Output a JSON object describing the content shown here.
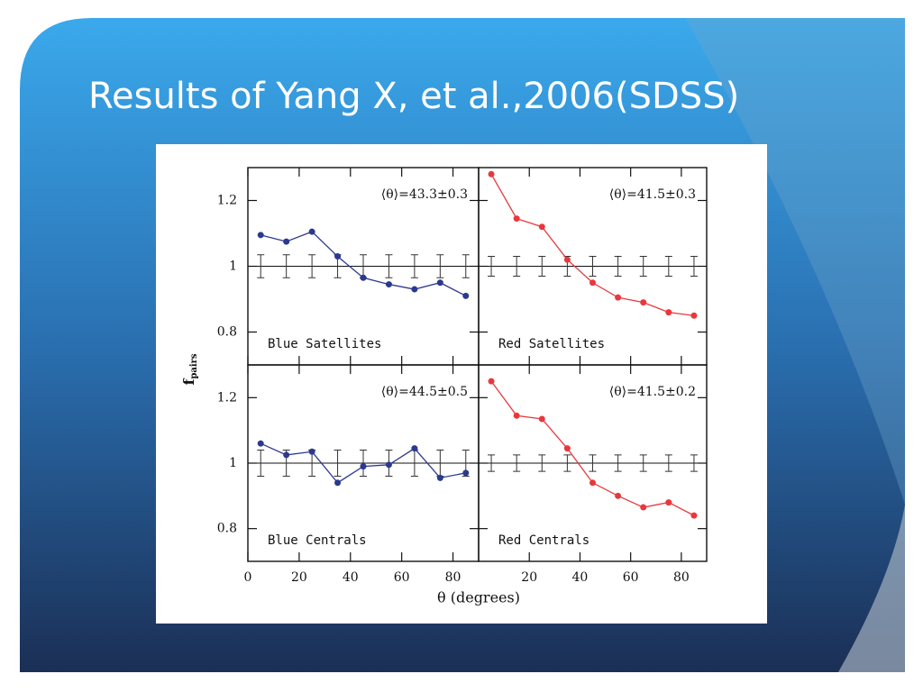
{
  "slide": {
    "title": "Results of Yang X, et al.,2006(SDSS)"
  },
  "figure": {
    "ylabel": "f",
    "ylabel_sub": "pairs",
    "xlabel": "θ (degrees)"
  },
  "chart_data": [
    {
      "type": "line",
      "label": "Blue Satellites",
      "annotation": "⟨θ⟩=43.3±0.3",
      "color": "#2b3990",
      "x": [
        5,
        15,
        25,
        35,
        45,
        55,
        65,
        75,
        85
      ],
      "values": [
        1.095,
        1.075,
        1.105,
        1.03,
        0.965,
        0.945,
        0.93,
        0.95,
        0.91
      ],
      "reference": 1,
      "errors": [
        0.035,
        0.035,
        0.035,
        0.035,
        0.035,
        0.035,
        0.035,
        0.035,
        0.035
      ],
      "xlim": [
        0,
        90
      ],
      "ylim": [
        0.7,
        1.3
      ],
      "xticks": [
        0,
        20,
        40,
        60,
        80
      ],
      "yticks": [
        0.8,
        1,
        1.2
      ],
      "xtick_labels": false,
      "ytick_labels": true
    },
    {
      "type": "line",
      "label": "Red Satellites",
      "annotation": "⟨θ⟩=41.5±0.3",
      "color": "#e8383d",
      "x": [
        5,
        15,
        25,
        35,
        45,
        55,
        65,
        75,
        85
      ],
      "values": [
        1.28,
        1.145,
        1.12,
        1.02,
        0.95,
        0.905,
        0.89,
        0.86,
        0.85
      ],
      "reference": 1,
      "errors": [
        0.03,
        0.03,
        0.03,
        0.03,
        0.03,
        0.03,
        0.03,
        0.03,
        0.03
      ],
      "xlim": [
        0,
        90
      ],
      "ylim": [
        0.7,
        1.3
      ],
      "xticks": [
        20,
        40,
        60,
        80
      ],
      "yticks": [
        0.8,
        1,
        1.2
      ],
      "xtick_labels": false,
      "ytick_labels": false
    },
    {
      "type": "line",
      "label": "Blue Centrals",
      "annotation": "⟨θ⟩=44.5±0.5",
      "color": "#2b3990",
      "x": [
        5,
        15,
        25,
        35,
        45,
        55,
        65,
        75,
        85
      ],
      "values": [
        1.06,
        1.025,
        1.035,
        0.94,
        0.99,
        0.995,
        1.045,
        0.955,
        0.97
      ],
      "reference": 1,
      "errors": [
        0.04,
        0.04,
        0.04,
        0.04,
        0.04,
        0.04,
        0.04,
        0.04,
        0.04
      ],
      "xlim": [
        0,
        90
      ],
      "ylim": [
        0.7,
        1.3
      ],
      "xticks": [
        0,
        20,
        40,
        60,
        80
      ],
      "yticks": [
        0.8,
        1,
        1.2
      ],
      "xtick_labels": true,
      "ytick_labels": true
    },
    {
      "type": "line",
      "label": "Red Centrals",
      "annotation": "⟨θ⟩=41.5±0.2",
      "color": "#e8383d",
      "x": [
        5,
        15,
        25,
        35,
        45,
        55,
        65,
        75,
        85
      ],
      "values": [
        1.25,
        1.145,
        1.135,
        1.045,
        0.94,
        0.9,
        0.865,
        0.88,
        0.84
      ],
      "reference": 1,
      "errors": [
        0.025,
        0.025,
        0.025,
        0.025,
        0.025,
        0.025,
        0.025,
        0.025,
        0.025
      ],
      "xlim": [
        0,
        90
      ],
      "ylim": [
        0.7,
        1.3
      ],
      "xticks": [
        20,
        40,
        60,
        80
      ],
      "yticks": [
        0.8,
        1,
        1.2
      ],
      "xtick_labels": true,
      "ytick_labels": false
    }
  ]
}
